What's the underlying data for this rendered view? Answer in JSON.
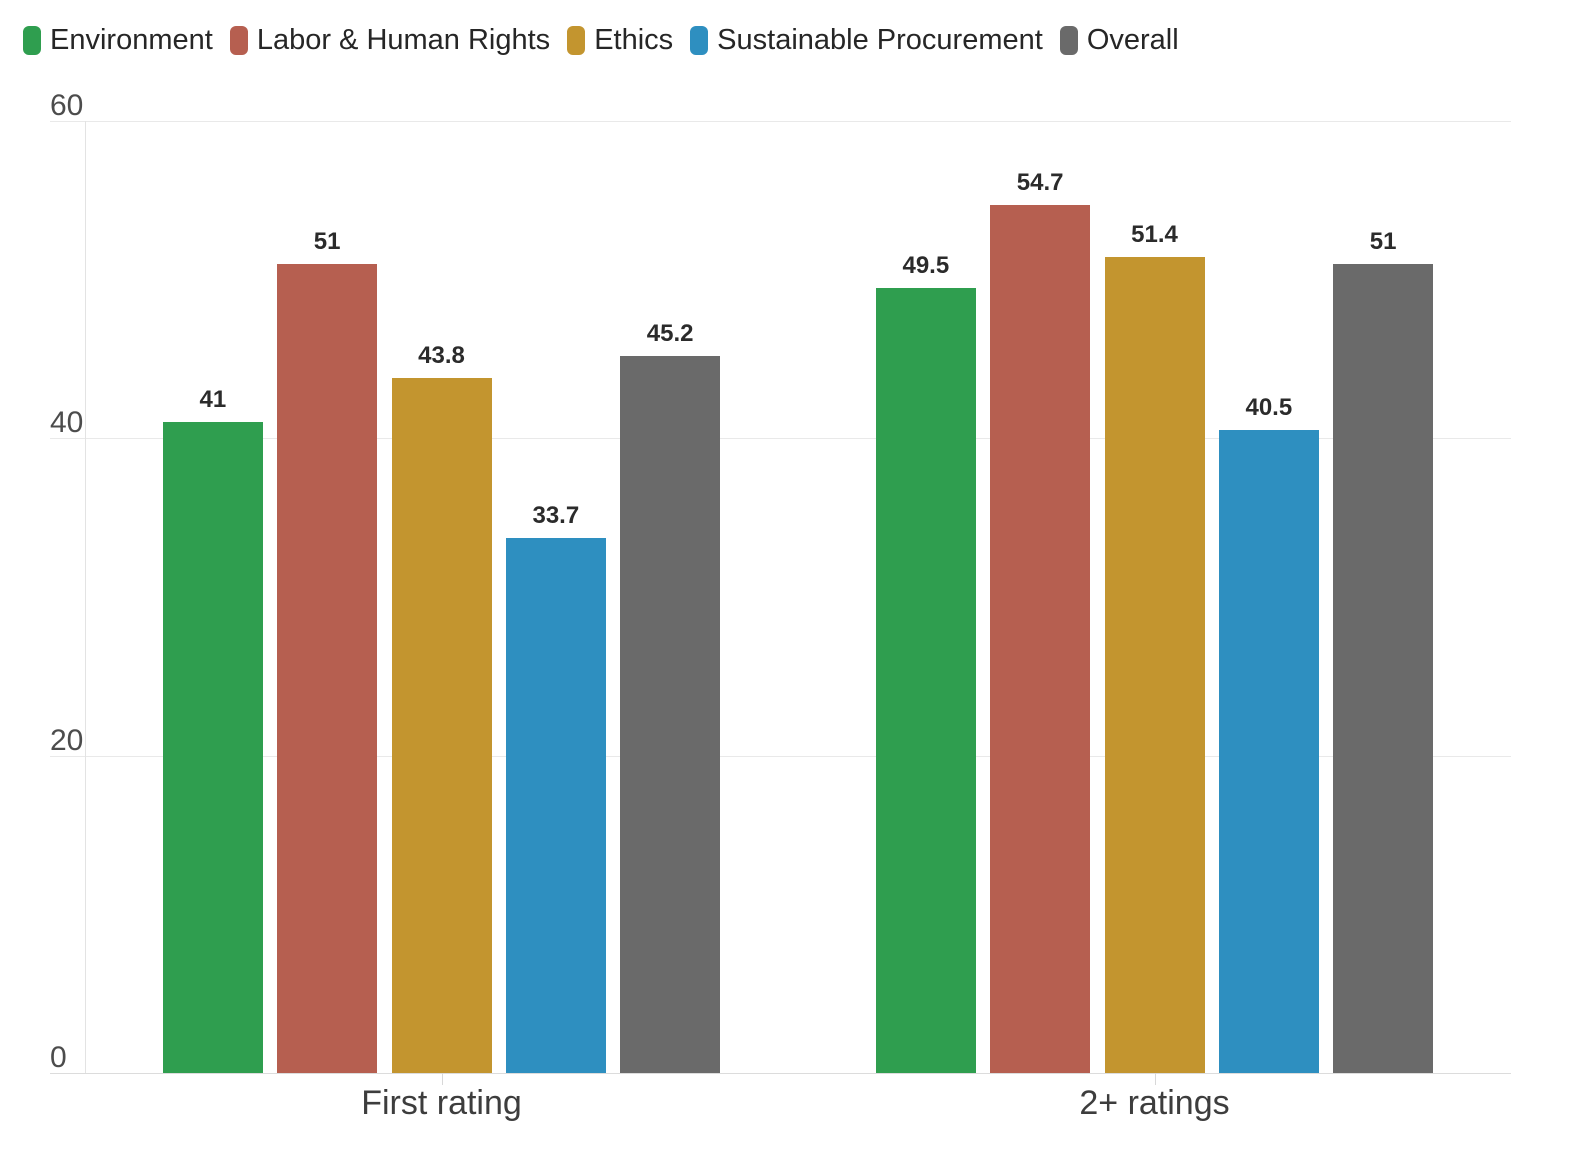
{
  "chart_data": {
    "type": "bar",
    "categories": [
      "First rating",
      "2+ ratings"
    ],
    "series": [
      {
        "name": "Environment",
        "color": "#2f9e4f",
        "values": [
          41,
          49.5
        ]
      },
      {
        "name": "Labor & Human Rights",
        "color": "#b65f50",
        "values": [
          51,
          54.7
        ]
      },
      {
        "name": "Ethics",
        "color": "#c3952f",
        "values": [
          43.8,
          51.4
        ]
      },
      {
        "name": "Sustainable Procurement",
        "color": "#2e8fc0",
        "values": [
          33.7,
          40.5
        ]
      },
      {
        "name": "Overall",
        "color": "#6a6a6a",
        "values": [
          45.2,
          51
        ]
      }
    ],
    "yticks": [
      0,
      20,
      40,
      60
    ],
    "ylim": [
      0,
      60
    ],
    "grid": true,
    "legend_position": "top-left",
    "value_labels_shown": true,
    "title": "",
    "xlabel": "",
    "ylabel": ""
  },
  "colors": {
    "background": "#ffffff",
    "gridline": "#e9e9e9",
    "baseline": "#dcdcdc",
    "axis_line": "#e3e3e3",
    "ytick_text": "#4c4c4c",
    "xcat_text": "#3d3d3d",
    "value_text": "#2b2b2b",
    "legend_text": "#262626"
  }
}
